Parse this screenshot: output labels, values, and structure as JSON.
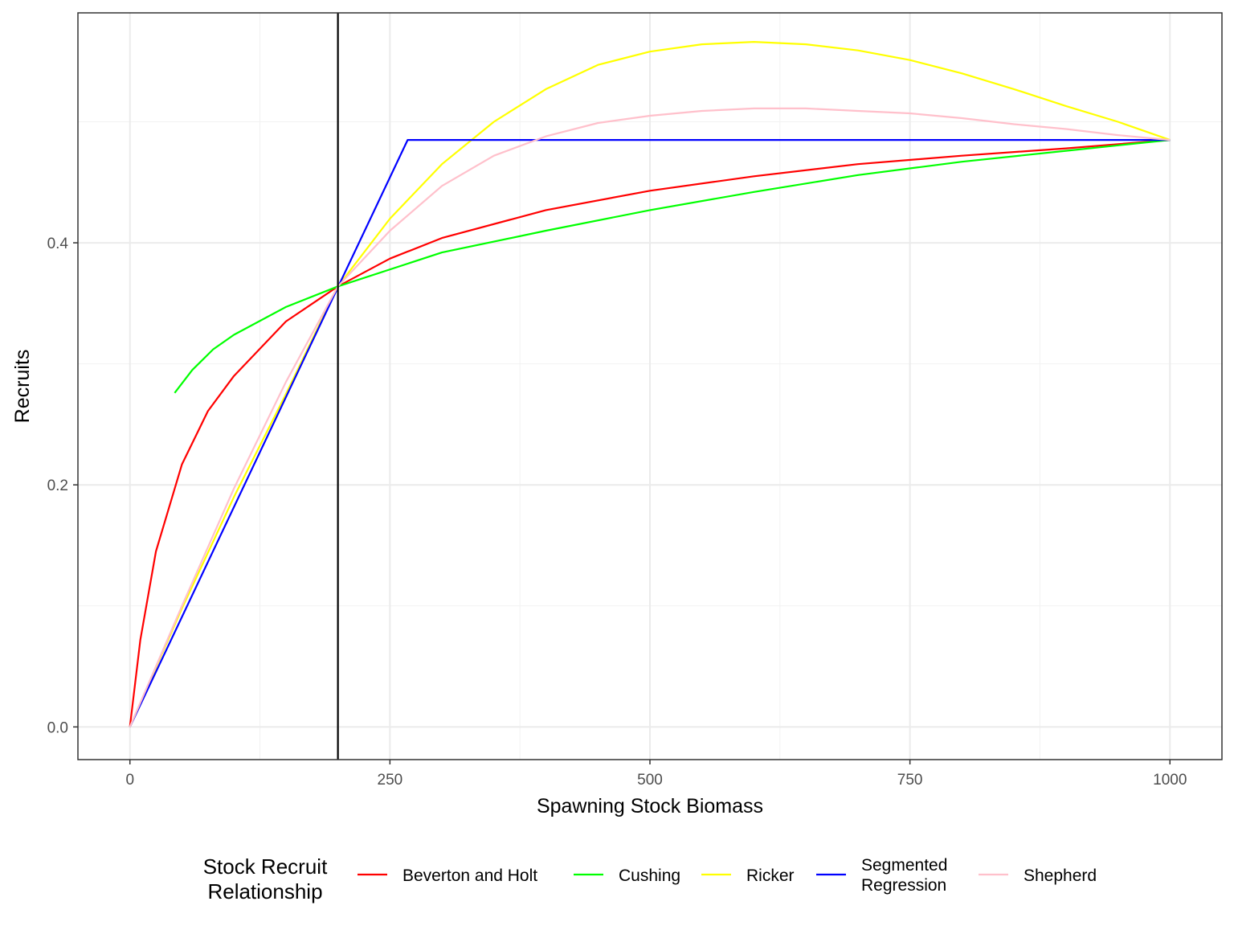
{
  "chart_data": {
    "type": "line",
    "title": "",
    "xlabel": "Spawning Stock Biomass",
    "ylabel": "Recruits",
    "xlim": [
      -50,
      1050
    ],
    "ylim": [
      -0.027,
      0.59
    ],
    "x_ticks": [
      0,
      250,
      500,
      750,
      1000
    ],
    "x_tick_labels": [
      "0",
      "250",
      "500",
      "750",
      "1000"
    ],
    "y_ticks": [
      0.0,
      0.2,
      0.4
    ],
    "y_tick_labels": [
      "0.0",
      "0.2",
      "0.4"
    ],
    "grid": true,
    "reference_line": {
      "x": 200,
      "color": "#000000"
    },
    "legend": {
      "position": "bottom",
      "title_lines": [
        "Stock Recruit",
        "Relationship"
      ]
    },
    "series": [
      {
        "name": "Beverton and Holt",
        "label_lines": [
          "Beverton and Holt"
        ],
        "color": "#ff0000",
        "points": [
          [
            0,
            0
          ],
          [
            10,
            0.072
          ],
          [
            25,
            0.145
          ],
          [
            50,
            0.217
          ],
          [
            75,
            0.261
          ],
          [
            100,
            0.29
          ],
          [
            150,
            0.335
          ],
          [
            200,
            0.364
          ],
          [
            250,
            0.387
          ],
          [
            300,
            0.404
          ],
          [
            400,
            0.427
          ],
          [
            500,
            0.443
          ],
          [
            600,
            0.455
          ],
          [
            700,
            0.465
          ],
          [
            800,
            0.472
          ],
          [
            900,
            0.478
          ],
          [
            1000,
            0.485
          ]
        ]
      },
      {
        "name": "Cushing",
        "label_lines": [
          "Cushing"
        ],
        "color": "#00ff00",
        "points": [
          [
            43,
            0.276
          ],
          [
            60,
            0.295
          ],
          [
            80,
            0.312
          ],
          [
            100,
            0.324
          ],
          [
            150,
            0.347
          ],
          [
            200,
            0.364
          ],
          [
            300,
            0.392
          ],
          [
            400,
            0.41
          ],
          [
            500,
            0.427
          ],
          [
            600,
            0.442
          ],
          [
            700,
            0.456
          ],
          [
            800,
            0.467
          ],
          [
            900,
            0.476
          ],
          [
            1000,
            0.485
          ]
        ]
      },
      {
        "name": "Ricker",
        "label_lines": [
          "Ricker"
        ],
        "color": "#ffff00",
        "points": [
          [
            0,
            0
          ],
          [
            50,
            0.098
          ],
          [
            100,
            0.19
          ],
          [
            150,
            0.275
          ],
          [
            200,
            0.364
          ],
          [
            250,
            0.42
          ],
          [
            300,
            0.465
          ],
          [
            350,
            0.5
          ],
          [
            400,
            0.527
          ],
          [
            450,
            0.547
          ],
          [
            500,
            0.558
          ],
          [
            550,
            0.564
          ],
          [
            600,
            0.566
          ],
          [
            650,
            0.564
          ],
          [
            700,
            0.559
          ],
          [
            750,
            0.551
          ],
          [
            800,
            0.54
          ],
          [
            850,
            0.527
          ],
          [
            900,
            0.513
          ],
          [
            950,
            0.5
          ],
          [
            1000,
            0.485
          ]
        ]
      },
      {
        "name": "Segmented Regression",
        "label_lines": [
          "Segmented",
          "Regression"
        ],
        "color": "#0000ff",
        "points": [
          [
            0,
            0
          ],
          [
            267,
            0.485
          ],
          [
            1000,
            0.485
          ]
        ]
      },
      {
        "name": "Shepherd",
        "label_lines": [
          "Shepherd"
        ],
        "color": "#ffc0cb",
        "points": [
          [
            0,
            0
          ],
          [
            50,
            0.1
          ],
          [
            100,
            0.197
          ],
          [
            150,
            0.285
          ],
          [
            200,
            0.364
          ],
          [
            250,
            0.41
          ],
          [
            300,
            0.447
          ],
          [
            350,
            0.472
          ],
          [
            400,
            0.488
          ],
          [
            450,
            0.499
          ],
          [
            500,
            0.505
          ],
          [
            550,
            0.509
          ],
          [
            600,
            0.511
          ],
          [
            650,
            0.511
          ],
          [
            700,
            0.509
          ],
          [
            750,
            0.507
          ],
          [
            800,
            0.503
          ],
          [
            850,
            0.498
          ],
          [
            900,
            0.494
          ],
          [
            950,
            0.489
          ],
          [
            1000,
            0.485
          ]
        ]
      }
    ]
  }
}
